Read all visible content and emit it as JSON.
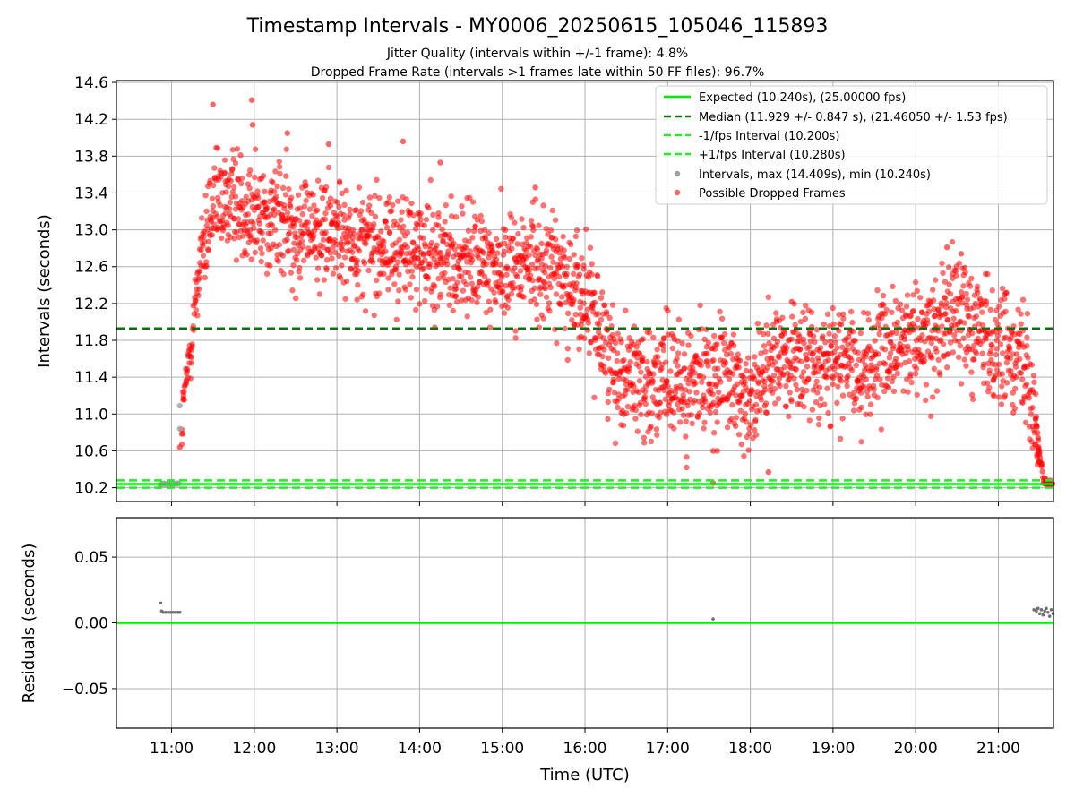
{
  "figure": {
    "title": "Timestamp Intervals - MY0006_20250615_105046_115893",
    "subtitle_1": "Jitter Quality (intervals within +/-1 frame): 4.8%",
    "subtitle_2": "Dropped Frame Rate (intervals >1 frames late within 50 FF files): 96.7%"
  },
  "colors": {
    "expected": "#00ee00",
    "median": "#007700",
    "interval_band": "#22ee22",
    "intervals": "#a0a0a0",
    "dropped": "#ff0000",
    "residuals": "#707070",
    "grid": "#b0b0b0"
  },
  "chart_data": [
    {
      "id": "intervals",
      "type": "scatter",
      "xlabel": "",
      "ylabel": "Intervals (seconds)",
      "xlim_hours": [
        10.3333,
        21.6667
      ],
      "ylim": [
        10.05,
        14.62
      ],
      "yticks": [
        10.2,
        10.6,
        11.0,
        11.4,
        11.8,
        12.2,
        12.6,
        13.0,
        13.4,
        13.8,
        14.2,
        14.6
      ],
      "ytick_labels": [
        "10.2",
        "10.6",
        "11.0",
        "11.4",
        "11.8",
        "12.2",
        "12.6",
        "13.0",
        "13.4",
        "13.8",
        "14.2",
        "14.6"
      ],
      "grid": true,
      "legend_position": "top-right",
      "lines": [
        {
          "name": "Expected (10.240s), (25.00000 fps)",
          "y": 10.24,
          "style": "solid",
          "color_key": "expected"
        },
        {
          "name": "Median (11.929 +/- 0.847 s), (21.46050 +/- 1.53 fps)",
          "y": 11.929,
          "style": "dashed",
          "color_key": "median"
        },
        {
          "name": "-1/fps Interval (10.200s)",
          "y": 10.2,
          "style": "dashed",
          "color_key": "interval_band"
        },
        {
          "name": "+1/fps Interval (10.280s)",
          "y": 10.28,
          "style": "dashed",
          "color_key": "interval_band"
        }
      ],
      "scatter_series": [
        {
          "name": "Intervals, max (14.409s), min (10.240s)",
          "color_key": "intervals"
        },
        {
          "name": "Possible Dropped Frames",
          "color_key": "dropped"
        }
      ],
      "trend_hours": [
        10.9,
        11.05,
        11.2,
        11.35,
        11.5,
        11.75,
        12.0,
        12.5,
        13.0,
        13.5,
        14.0,
        14.5,
        15.0,
        15.5,
        15.9,
        16.2,
        16.4,
        16.7,
        17.0,
        17.3,
        17.6,
        17.9,
        18.1,
        18.4,
        18.7,
        19.0,
        19.3,
        19.6,
        19.9,
        20.2,
        20.45,
        20.7,
        20.95,
        21.2,
        21.35,
        21.45,
        21.55,
        21.667
      ],
      "trend_values": [
        10.24,
        10.24,
        11.5,
        12.7,
        13.2,
        13.35,
        13.2,
        13.05,
        12.95,
        12.85,
        12.75,
        12.65,
        12.6,
        12.65,
        12.35,
        11.9,
        11.45,
        11.4,
        11.3,
        11.3,
        11.45,
        11.2,
        11.3,
        11.7,
        11.5,
        11.65,
        11.45,
        11.65,
        11.75,
        11.85,
        12.3,
        11.9,
        11.75,
        11.7,
        11.6,
        10.9,
        10.24,
        10.24
      ],
      "spread": 0.3,
      "points": [
        {
          "t": 11.5,
          "v": 14.36,
          "s": 1
        },
        {
          "t": 11.97,
          "v": 14.409,
          "s": 1
        },
        {
          "t": 11.98,
          "v": 14.14,
          "s": 1
        },
        {
          "t": 12.4,
          "v": 14.05,
          "s": 1
        },
        {
          "t": 13.8,
          "v": 13.96,
          "s": 1
        },
        {
          "t": 12.9,
          "v": 13.93,
          "s": 1
        },
        {
          "t": 14.25,
          "v": 13.73,
          "s": 1
        },
        {
          "t": 17.55,
          "v": 10.6,
          "s": 1
        },
        {
          "t": 17.6,
          "v": 10.6,
          "s": 1
        },
        {
          "t": 17.55,
          "v": 10.25,
          "s": 1
        },
        {
          "t": 18.22,
          "v": 10.37,
          "s": 1
        },
        {
          "t": 11.1,
          "v": 10.64,
          "s": 1
        },
        {
          "t": 11.1,
          "v": 10.84,
          "s": 0
        },
        {
          "t": 11.1,
          "v": 11.09,
          "s": 0
        },
        {
          "t": 20.38,
          "v": 12.81,
          "s": 1
        },
        {
          "t": 20.55,
          "v": 12.74,
          "s": 1
        },
        {
          "t": 18.5,
          "v": 12.22,
          "s": 1
        },
        {
          "t": 15.4,
          "v": 13.46,
          "s": 1
        },
        {
          "t": 21.6,
          "v": 10.24,
          "s": 1
        },
        {
          "t": 21.65,
          "v": 10.24,
          "s": 1
        }
      ]
    },
    {
      "id": "residuals",
      "type": "scatter",
      "xlabel": "Time (UTC)",
      "ylabel": "Residuals (seconds)",
      "xlim_hours": [
        10.3333,
        21.6667
      ],
      "ylim": [
        -0.08,
        0.08
      ],
      "yticks": [
        0.05,
        0.0,
        -0.05
      ],
      "ytick_labels": [
        "0.05",
        "0.00",
        "−0.05"
      ],
      "xticks_hours": [
        11,
        12,
        13,
        14,
        15,
        16,
        17,
        18,
        19,
        20,
        21
      ],
      "xtick_labels": [
        "11:00",
        "12:00",
        "13:00",
        "14:00",
        "15:00",
        "16:00",
        "17:00",
        "18:00",
        "19:00",
        "20:00",
        "21:00"
      ],
      "grid": true,
      "zero_line": 0.0,
      "points": [
        {
          "t": 10.87,
          "v": 0.015
        },
        {
          "t": 10.88,
          "v": 0.009
        },
        {
          "t": 10.9,
          "v": 0.008
        },
        {
          "t": 10.93,
          "v": 0.008
        },
        {
          "t": 10.96,
          "v": 0.008
        },
        {
          "t": 10.99,
          "v": 0.008
        },
        {
          "t": 11.02,
          "v": 0.008
        },
        {
          "t": 11.05,
          "v": 0.008
        },
        {
          "t": 11.08,
          "v": 0.008
        },
        {
          "t": 11.1,
          "v": 0.008
        },
        {
          "t": 17.55,
          "v": 0.003
        },
        {
          "t": 21.43,
          "v": 0.01
        },
        {
          "t": 21.46,
          "v": 0.009
        },
        {
          "t": 21.48,
          "v": 0.011
        },
        {
          "t": 21.5,
          "v": 0.007
        },
        {
          "t": 21.52,
          "v": 0.01
        },
        {
          "t": 21.54,
          "v": 0.006
        },
        {
          "t": 21.56,
          "v": 0.009
        },
        {
          "t": 21.58,
          "v": 0.011
        },
        {
          "t": 21.6,
          "v": 0.008
        },
        {
          "t": 21.62,
          "v": 0.005
        },
        {
          "t": 21.64,
          "v": 0.01
        },
        {
          "t": 21.66,
          "v": 0.007
        }
      ]
    }
  ]
}
